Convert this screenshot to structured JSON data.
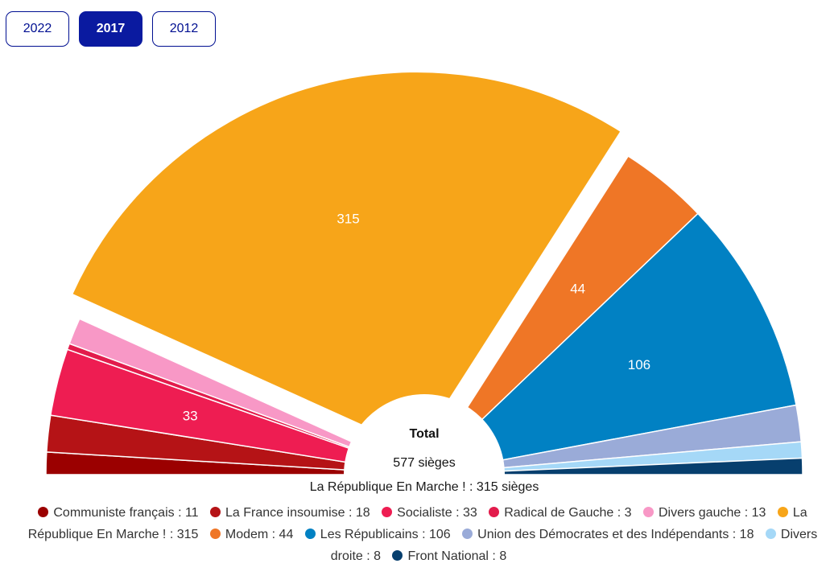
{
  "years": {
    "items": [
      {
        "label": "2022",
        "active": false
      },
      {
        "label": "2017",
        "active": true
      },
      {
        "label": "2012",
        "active": false
      }
    ]
  },
  "hover_caption": "La République En Marche ! : 315 sièges",
  "chart_data": {
    "type": "pie",
    "variant": "semi-circle (parliament)",
    "center_label": "Total",
    "center_value": "577 sièges",
    "total": 577,
    "highlighted": "La République En Marche !",
    "legend_position": "bottom",
    "slices": [
      {
        "label": "Communiste français",
        "value": 11,
        "color": "#9b0000",
        "data_label": ""
      },
      {
        "label": "La France insoumise",
        "value": 18,
        "color": "#b51316",
        "data_label": ""
      },
      {
        "label": "Socialiste",
        "value": 33,
        "color": "#ee1d52",
        "data_label": "33"
      },
      {
        "label": "Radical de Gauche",
        "value": 3,
        "color": "#e21c4c",
        "data_label": ""
      },
      {
        "label": "Divers gauche",
        "value": 13,
        "color": "#f898c6",
        "data_label": ""
      },
      {
        "label": "La République En Marche !",
        "value": 315,
        "color": "#f7a519",
        "data_label": "315"
      },
      {
        "label": "Modem",
        "value": 44,
        "color": "#ef7626",
        "data_label": "44"
      },
      {
        "label": "Les Républicains",
        "value": 106,
        "color": "#0181c3",
        "data_label": "106"
      },
      {
        "label": "Union des Démocrates et des Indépendants",
        "value": 18,
        "color": "#9aabd8",
        "data_label": ""
      },
      {
        "label": "Divers droite",
        "value": 8,
        "color": "#a5d8f7",
        "data_label": ""
      },
      {
        "label": "Front National",
        "value": 8,
        "color": "#073f6e",
        "data_label": ""
      }
    ]
  }
}
